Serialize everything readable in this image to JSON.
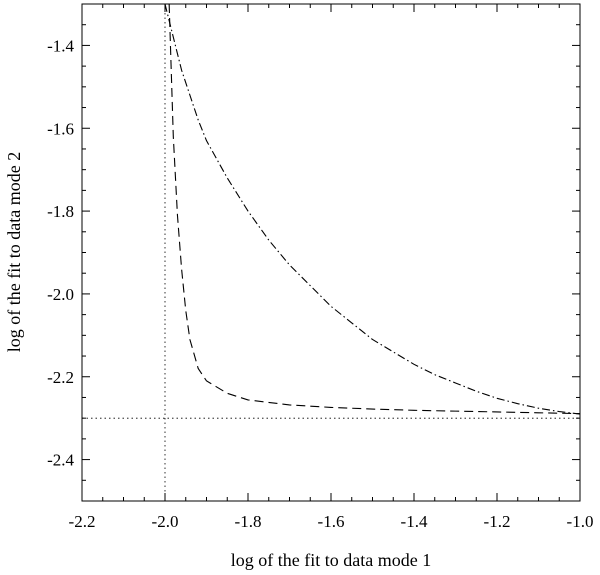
{
  "chart_data": {
    "type": "line",
    "title": "",
    "xlabel": "log of the fit to data mode 1",
    "ylabel": "log of the fit to data mode 2",
    "xlim": [
      -2.2,
      -1.0
    ],
    "ylim": [
      -2.5,
      -1.3
    ],
    "x_ticks": [
      -2.2,
      -2.0,
      -1.8,
      -1.6,
      -1.4,
      -1.2,
      -1.0
    ],
    "x_tick_labels": [
      "-2.2",
      "-2.0",
      "-1.8",
      "-1.6",
      "-1.4",
      "-1.2",
      "-1.0"
    ],
    "y_ticks": [
      -2.4,
      -2.2,
      -2.0,
      -1.8,
      -1.6,
      -1.4
    ],
    "y_tick_labels": [
      "-2.4",
      "-2.2",
      "-2.0",
      "-1.8",
      "-1.6",
      "-1.4"
    ],
    "grid": false,
    "series": [
      {
        "style": "dashed",
        "x": [
          -1.99,
          -1.98,
          -1.97,
          -1.96,
          -1.95,
          -1.94,
          -1.92,
          -1.9,
          -1.85,
          -1.8,
          -1.7,
          -1.6,
          -1.5,
          -1.4,
          -1.3,
          -1.2,
          -1.1,
          -1.0
        ],
        "y": [
          -1.3,
          -1.62,
          -1.81,
          -1.94,
          -2.04,
          -2.11,
          -2.18,
          -2.21,
          -2.24,
          -2.256,
          -2.268,
          -2.274,
          -2.278,
          -2.281,
          -2.283,
          -2.285,
          -2.287,
          -2.289
        ]
      },
      {
        "style": "dash-dot",
        "x": [
          -2.0,
          -1.99,
          -1.98,
          -1.96,
          -1.94,
          -1.92,
          -1.9,
          -1.85,
          -1.8,
          -1.75,
          -1.7,
          -1.65,
          -1.6,
          -1.55,
          -1.5,
          -1.45,
          -1.4,
          -1.35,
          -1.3,
          -1.25,
          -1.2,
          -1.15,
          -1.1,
          -1.05,
          -1.0
        ],
        "y": [
          -1.3,
          -1.34,
          -1.38,
          -1.46,
          -1.52,
          -1.58,
          -1.63,
          -1.72,
          -1.8,
          -1.87,
          -1.93,
          -1.98,
          -2.03,
          -2.07,
          -2.11,
          -2.14,
          -2.17,
          -2.195,
          -2.215,
          -2.235,
          -2.252,
          -2.265,
          -2.276,
          -2.284,
          -2.29
        ]
      }
    ],
    "reference_lines": [
      {
        "orientation": "vertical",
        "x": -2.0,
        "style": "dotted"
      },
      {
        "orientation": "horizontal",
        "y": -2.3,
        "style": "dotted"
      }
    ]
  }
}
